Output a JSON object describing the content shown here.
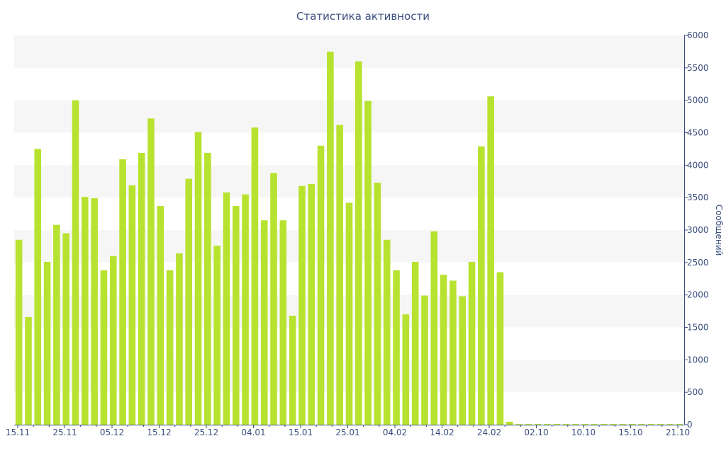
{
  "chart_data": {
    "type": "bar",
    "title": "Статистика активности",
    "ylabel": "Сообщений",
    "ylim": [
      0,
      6000
    ],
    "y_ticks": [
      0,
      500,
      1000,
      1500,
      2000,
      2500,
      3000,
      3500,
      4000,
      4500,
      5000,
      5500,
      6000
    ],
    "y_axis_position": "right",
    "grid": "horizontal alternating bands",
    "colors": {
      "bar": "#b7e22f",
      "text": "#3a4e7e",
      "axis": "#3a4e7e",
      "band": "#f6f6f6"
    },
    "x_tick_labels": [
      "15.11",
      "25.11",
      "05.12",
      "15.12",
      "25.12",
      "04.01",
      "15.01",
      "25.01",
      "04.02",
      "14.02",
      "24.02",
      "02.10",
      "10.10",
      "15.10",
      "21.10"
    ],
    "values": [
      2850,
      1660,
      4250,
      2510,
      3080,
      2950,
      5000,
      3510,
      3490,
      2380,
      2600,
      4090,
      3690,
      4190,
      4720,
      3370,
      2380,
      2640,
      3790,
      4510,
      4190,
      2760,
      3580,
      3370,
      3550,
      4580,
      3150,
      3880,
      3150,
      1680,
      3680,
      3710,
      4300,
      5750,
      4620,
      3420,
      5600,
      4990,
      3730,
      2850,
      2380,
      1700,
      2510,
      1990,
      2980,
      2310,
      2220,
      1980,
      2510,
      4290,
      5060,
      2350,
      45,
      10,
      10,
      10,
      10,
      10,
      10,
      10,
      10,
      10,
      10,
      10,
      10,
      10,
      10,
      10,
      10,
      10,
      10
    ]
  }
}
